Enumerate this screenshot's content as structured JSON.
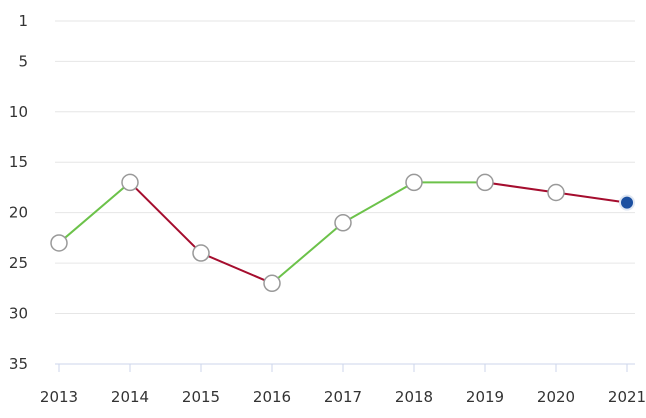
{
  "chart_data": {
    "type": "line",
    "title": "",
    "xlabel": "",
    "ylabel": "",
    "x": [
      "2013",
      "2014",
      "2015",
      "2016",
      "2017",
      "2018",
      "2019",
      "2020",
      "2021"
    ],
    "values": [
      23,
      17,
      24,
      27,
      21,
      17,
      17,
      18,
      19
    ],
    "y_axis": {
      "reversed": true,
      "ylim": [
        1,
        35
      ],
      "ticks": [
        1,
        5,
        10,
        15,
        20,
        25,
        30,
        35
      ]
    },
    "grid": true,
    "legend": "none",
    "colors": {
      "improving_segment": "#6cc24a",
      "worsening_segment": "#a50d2e",
      "marker_fill": "#ffffff",
      "marker_stroke": "#999999",
      "last_point_fill": "#1b4fa0"
    }
  }
}
